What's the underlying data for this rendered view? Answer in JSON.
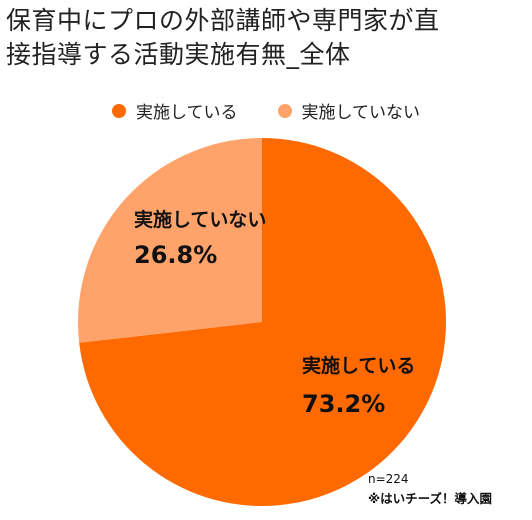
{
  "chart_data": {
    "type": "pie",
    "title": "保育中にプロの外部講師や専門家が直\n接指導する活動実施有無_全体",
    "categories": [
      "実施している",
      "実施していない"
    ],
    "values": [
      73.2,
      26.8
    ],
    "value_labels": [
      "73.2%",
      "26.8%"
    ],
    "colors": [
      "#FF6A00",
      "#FFA36B"
    ],
    "legend_position": "top",
    "start_angle": "12 o'clock",
    "direction": "clockwise"
  },
  "notes": {
    "sample_size": "n=224",
    "source": "※はいチーズ！導入園"
  }
}
